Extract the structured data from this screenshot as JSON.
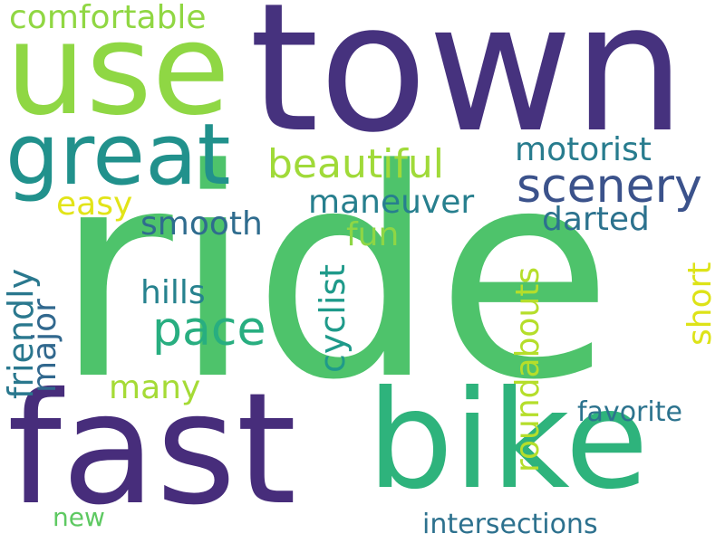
{
  "words": [
    {
      "text": "town",
      "color": "#46327e"
    },
    {
      "text": "use",
      "color": "#8fd744"
    },
    {
      "text": "ride",
      "color": "#4ec36b"
    },
    {
      "text": "fast",
      "color": "#472d7b"
    },
    {
      "text": "bike",
      "color": "#2eb37c"
    },
    {
      "text": "great",
      "color": "#21918c"
    },
    {
      "text": "comfortable",
      "color": "#90d743"
    },
    {
      "text": "beautiful",
      "color": "#a0da39"
    },
    {
      "text": "motorist",
      "color": "#287c8e"
    },
    {
      "text": "scenery",
      "color": "#3b528b"
    },
    {
      "text": "easy",
      "color": "#e2e418"
    },
    {
      "text": "maneuver",
      "color": "#277f8e"
    },
    {
      "text": "smooth",
      "color": "#2f6c8e"
    },
    {
      "text": "darted",
      "color": "#2c728e"
    },
    {
      "text": "fun",
      "color": "#8ed645"
    },
    {
      "text": "friendly",
      "color": "#2a788e"
    },
    {
      "text": "major",
      "color": "#31688e"
    },
    {
      "text": "cyclist",
      "color": "#1f9a8a"
    },
    {
      "text": "hills",
      "color": "#26828e"
    },
    {
      "text": "pace",
      "color": "#28ae80"
    },
    {
      "text": "roundabouts",
      "color": "#b5de2b"
    },
    {
      "text": "short",
      "color": "#dde318"
    },
    {
      "text": "many",
      "color": "#a5db36"
    },
    {
      "text": "favorite",
      "color": "#2c738e"
    },
    {
      "text": "new",
      "color": "#5ec962"
    },
    {
      "text": "intersections",
      "color": "#2d718e"
    }
  ]
}
